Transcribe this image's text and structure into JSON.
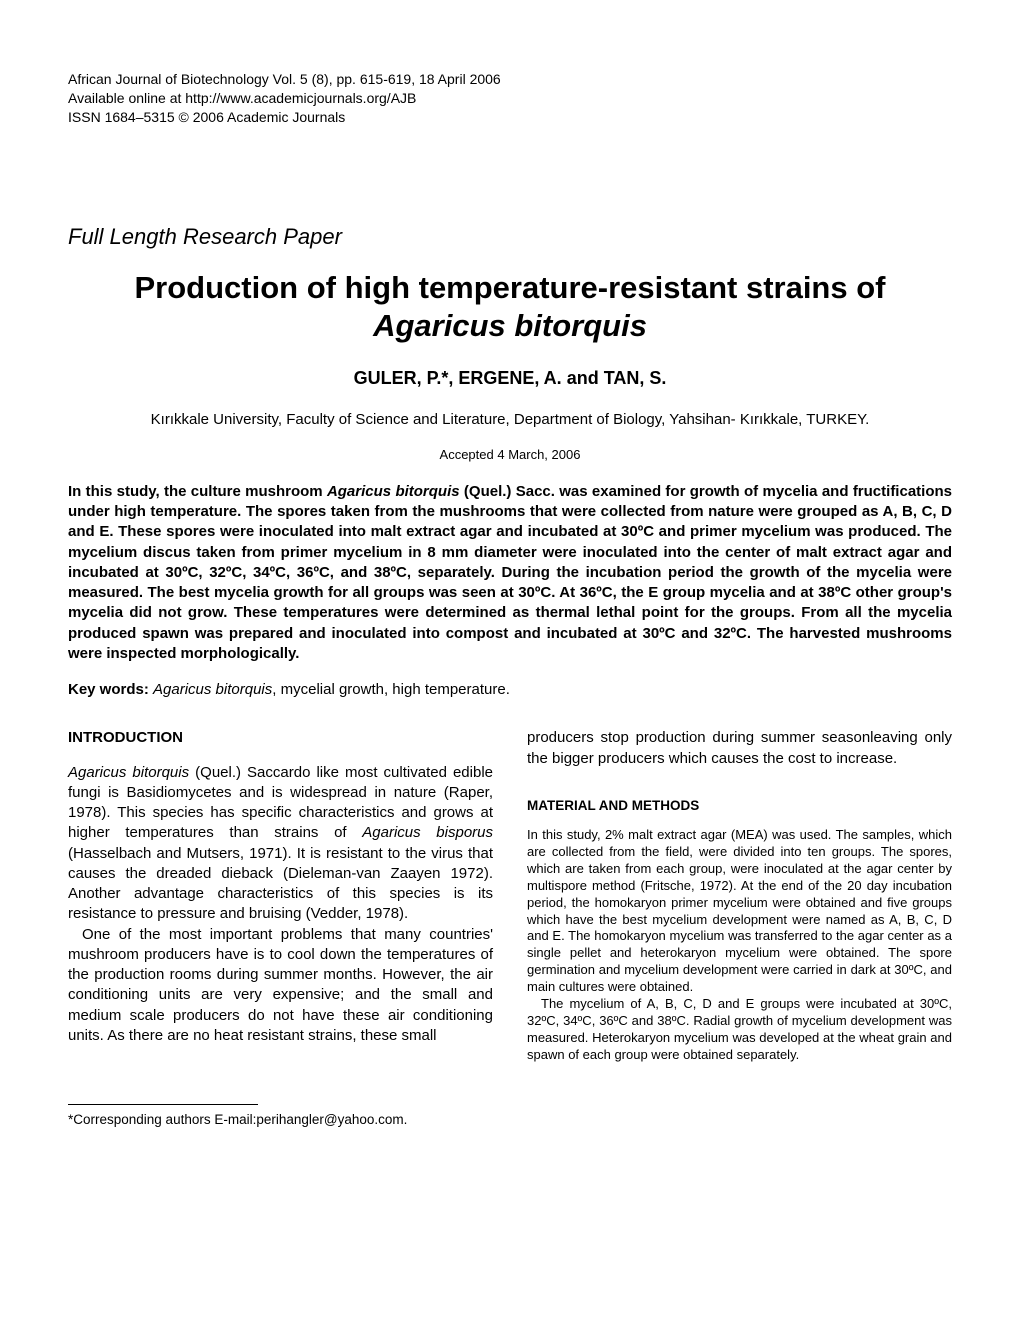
{
  "header": {
    "line1": "African Journal of Biotechnology Vol. 5 (8), pp. 615-619, 18 April 2006",
    "line2": "Available online at http://www.academicjournals.org/AJB",
    "line3": "ISSN 1684–5315 © 2006 Academic Journals"
  },
  "paper_type": "Full Length Research Paper",
  "title": {
    "line1": "Production of high temperature-resistant strains of",
    "line2_italic": "Agaricus bitorquis"
  },
  "authors": "GULER, P.*, ERGENE, A. and TAN, S.",
  "affiliation": "Kırıkkale University, Faculty of Science and Literature, Department of Biology, Yahsihan- Kırıkkale, TURKEY.",
  "accepted": "Accepted 4 March, 2006",
  "abstract": {
    "prefix": "In this study, the culture mushroom ",
    "species": "Agaricus bitorquis",
    "body": " (Quel.) Sacc. was examined for growth of mycelia and fructifications under high temperature. The spores taken from the mushrooms that were collected from nature were grouped as A, B, C, D and E.  These spores were inoculated into malt extract agar and incubated at 30ºC and primer mycelium was produced. The mycelium discus taken from primer mycelium in 8 mm diameter were inoculated into the center of malt extract agar and incubated at 30ºC, 32ºC, 34ºC, 36ºC, and 38ºC, separately.  During the incubation period the growth of the mycelia were measured. The best mycelia growth for all groups was seen at 30ºC. At 36ºC, the E group mycelia and at 38ºC other group's mycelia did not grow. These temperatures were determined as thermal lethal point for the groups. From all the mycelia produced spawn was prepared and inoculated into compost and incubated at 30ºC and 32ºC. The harvested mushrooms were inspected morphologically."
  },
  "keywords": {
    "label": "Key words: ",
    "italic": "Agaricus bitorquis",
    "rest": ", mycelial growth, high temperature."
  },
  "introduction": {
    "heading": "INTRODUCTION",
    "p1_sp1": "Agaricus bitorquis",
    "p1_t1": " (Quel.) Saccardo like most cultivated edible fungi is Basidiomycetes and is widespread in nature (Raper, 1978). This species has specific characteristics and grows at higher temperatures than strains of ",
    "p1_sp2": "Agaricus bisporus",
    "p1_t2": " (Hasselbach and Mutsers, 1971). It is resistant to the virus that causes the dreaded dieback (Dieleman-van Zaayen 1972). Another advantage characteristics of this species is its resistance to pressure and bruising (Vedder, 1978).",
    "p2": "One of the most important problems that many countries' mushroom producers have is to cool down the temperatures of the production rooms during summer months. However, the air conditioning units are very expensive; and the small and medium scale producers do not have these air conditioning units. As there are no heat resistant strains, these small",
    "p3": "producers stop production during summer seasonleaving only the bigger producers which causes the cost to increase."
  },
  "methods": {
    "heading": "MATERIAL AND METHODS",
    "p1": "In this study, 2% malt extract agar (MEA) was used. The samples, which are collected from the field, were divided into ten groups. The spores, which are taken from each group, were inoculated at the agar center by multispore method (Fritsche, 1972). At the end of the 20 day incubation period, the homokaryon primer mycelium were obtained and five groups which have the best mycelium development were named as A, B, C, D and E. The homokaryon mycelium was transferred to the agar center as a single pellet and heterokaryon mycelium were obtained. The spore germination and mycelium development were carried in dark at 30ºC, and main cultures were obtained.",
    "p2": "The mycelium of A, B, C, D and E groups were incubated at 30ºC, 32ºC, 34ºC, 36ºC and 38ºC. Radial growth of mycelium development was measured. Heterokaryon mycelium was developed at the wheat grain and spawn of each group were obtained separately."
  },
  "footnote": "*Corresponding authors E-mail:perihangler@yahoo.com."
}
